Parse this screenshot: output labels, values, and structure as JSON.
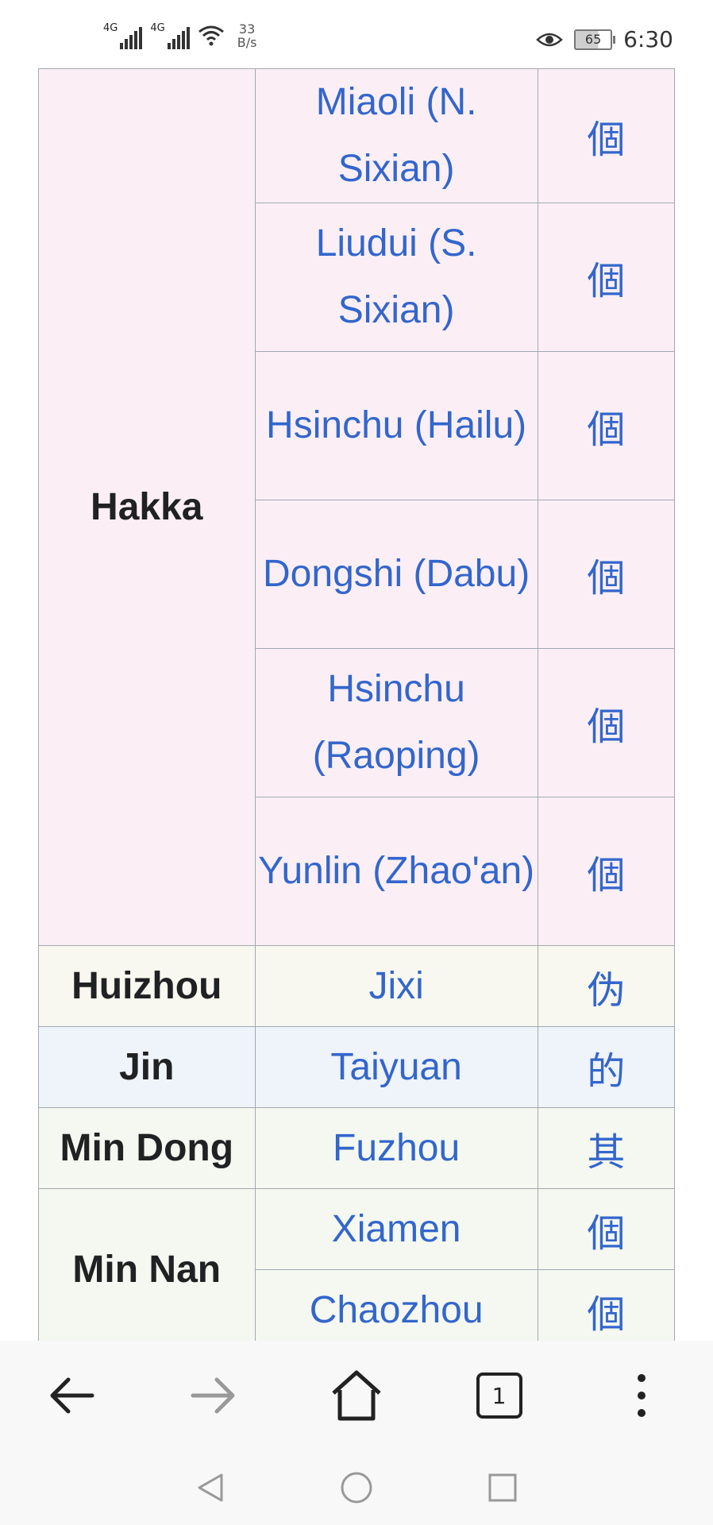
{
  "status_bar": {
    "signal1_label": "4G",
    "signal2_label": "4G",
    "net_speed_value": "33",
    "net_speed_unit": "B/s",
    "battery": "65",
    "time": "6:30"
  },
  "table": {
    "rows": [
      {
        "location": "Miaoli (N. Sixian)",
        "char": "個"
      },
      {
        "location": "Liudui (S. Sixian)",
        "char": "個"
      },
      {
        "location": "Hsinchu (Hailu)",
        "char": "個"
      },
      {
        "location": "Dongshi (Dabu)",
        "char": "個"
      },
      {
        "location": "Hsinchu (Raoping)",
        "char": "個"
      },
      {
        "location": "Yunlin (Zhao'an)",
        "char": "個"
      },
      {
        "location": "Jixi",
        "char": "伪"
      },
      {
        "location": "Taiyuan",
        "char": "的"
      },
      {
        "location": "Fuzhou",
        "char": "其"
      },
      {
        "location": "Xiamen",
        "char": "個"
      },
      {
        "location": "Chaozhou",
        "char": "個"
      }
    ],
    "groups": {
      "hakka": "Hakka",
      "huizhou": "Huizhou",
      "jin": "Jin",
      "min_dong": "Min Dong",
      "min_nan": "Min Nan"
    }
  },
  "browser": {
    "tab_count": "1"
  },
  "colors": {
    "link": "#3366cc",
    "hakka_bg": "#fbeff5",
    "huizhou_bg": "#f8f8f0",
    "jin_bg": "#eff3fa",
    "min_bg": "#f4f8f0"
  }
}
